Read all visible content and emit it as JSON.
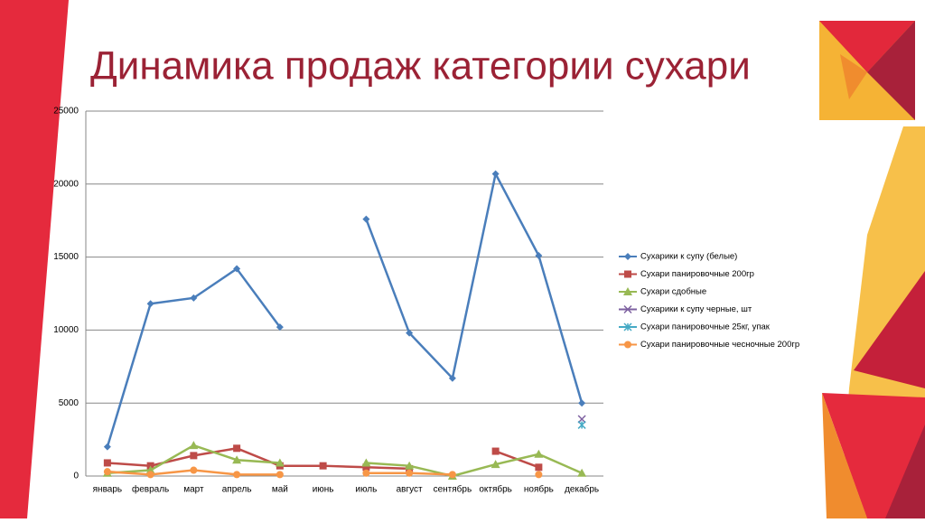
{
  "chart_data": {
    "type": "line",
    "title": "Динамика продаж категории сухари",
    "categories": [
      "январь",
      "февраль",
      "март",
      "апрель",
      "май",
      "июнь",
      "июль",
      "август",
      "сентябрь",
      "октябрь",
      "ноябрь",
      "декабрь"
    ],
    "series": [
      {
        "name": "Сухарики к супу (белые)",
        "color": "#4a7ebb",
        "marker": "diamond",
        "values": [
          2000,
          11800,
          12200,
          14200,
          10200,
          null,
          17600,
          9800,
          6700,
          20700,
          15100,
          5000
        ]
      },
      {
        "name": "Сухари панировочные 200гр",
        "color": "#be4b48",
        "marker": "square",
        "values": [
          900,
          700,
          1400,
          1900,
          700,
          700,
          600,
          500,
          null,
          1700,
          600,
          null
        ]
      },
      {
        "name": "Сухари сдобные",
        "color": "#98b954",
        "marker": "triangle",
        "values": [
          200,
          400,
          2100,
          1100,
          900,
          null,
          900,
          700,
          0,
          800,
          1500,
          200
        ]
      },
      {
        "name": "Сухарики к супу черные, шт",
        "color": "#7d60a0",
        "marker": "x",
        "values": [
          null,
          null,
          null,
          null,
          null,
          null,
          null,
          null,
          null,
          null,
          null,
          3900
        ]
      },
      {
        "name": "Сухари панировочные 25кг, упак",
        "color": "#46aac5",
        "marker": "star",
        "values": [
          null,
          null,
          null,
          null,
          null,
          null,
          null,
          null,
          null,
          null,
          null,
          3500
        ]
      },
      {
        "name": "Сухари панировочные чесночные 200гр",
        "color": "#f79646",
        "marker": "circle",
        "values": [
          300,
          100,
          400,
          100,
          100,
          null,
          200,
          200,
          100,
          null,
          100,
          null
        ]
      }
    ],
    "ylim": [
      0,
      25000
    ],
    "yticks": [
      0,
      5000,
      10000,
      15000,
      20000,
      25000
    ],
    "grid": true,
    "legend": "right"
  }
}
